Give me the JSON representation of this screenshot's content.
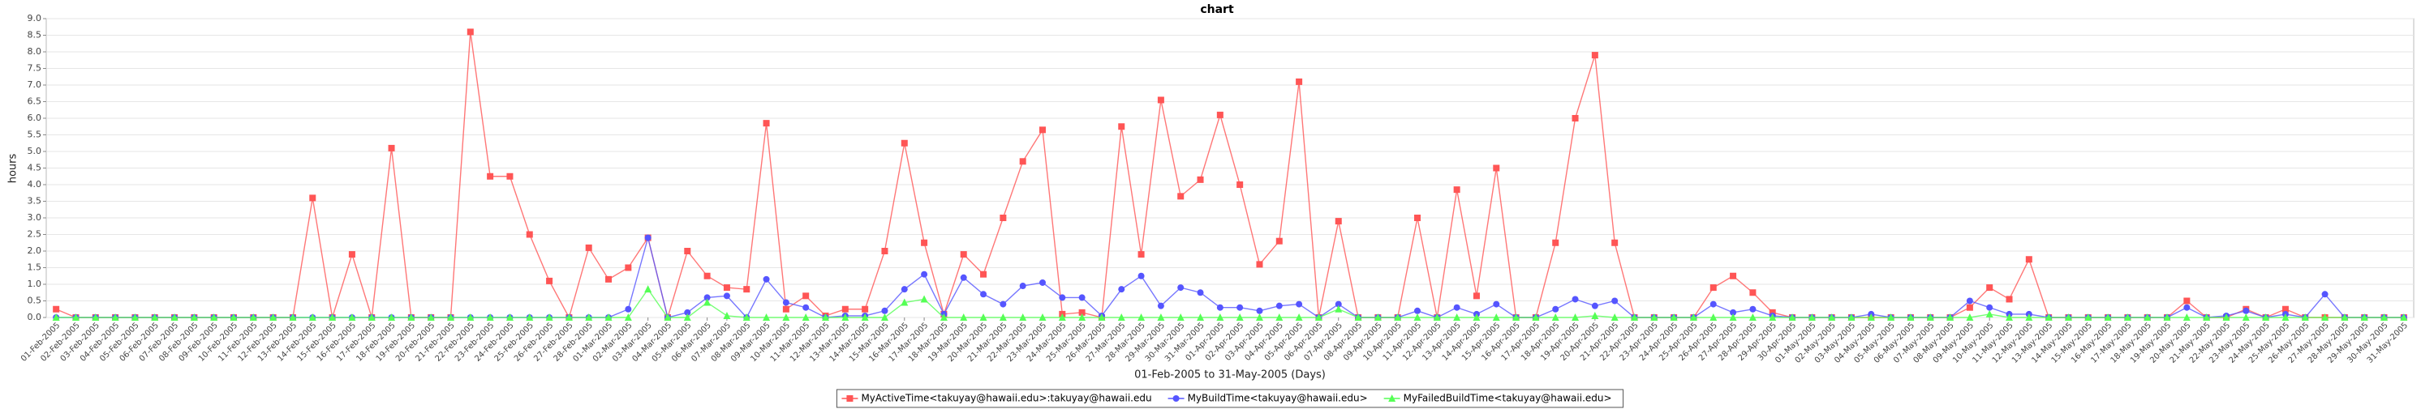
{
  "chart_data": {
    "type": "line",
    "title": "chart",
    "xlabel": "01-Feb-2005 to 31-May-2005 (Days)",
    "ylabel": "hours",
    "categories": [
      "01-Feb-2005",
      "02-Feb-2005",
      "03-Feb-2005",
      "04-Feb-2005",
      "05-Feb-2005",
      "06-Feb-2005",
      "07-Feb-2005",
      "08-Feb-2005",
      "09-Feb-2005",
      "10-Feb-2005",
      "11-Feb-2005",
      "12-Feb-2005",
      "13-Feb-2005",
      "14-Feb-2005",
      "15-Feb-2005",
      "16-Feb-2005",
      "17-Feb-2005",
      "18-Feb-2005",
      "19-Feb-2005",
      "20-Feb-2005",
      "21-Feb-2005",
      "22-Feb-2005",
      "23-Feb-2005",
      "24-Feb-2005",
      "25-Feb-2005",
      "26-Feb-2005",
      "27-Feb-2005",
      "28-Feb-2005",
      "01-Mar-2005",
      "02-Mar-2005",
      "03-Mar-2005",
      "04-Mar-2005",
      "05-Mar-2005",
      "06-Mar-2005",
      "07-Mar-2005",
      "08-Mar-2005",
      "09-Mar-2005",
      "10-Mar-2005",
      "11-Mar-2005",
      "12-Mar-2005",
      "13-Mar-2005",
      "14-Mar-2005",
      "15-Mar-2005",
      "16-Mar-2005",
      "17-Mar-2005",
      "18-Mar-2005",
      "19-Mar-2005",
      "20-Mar-2005",
      "21-Mar-2005",
      "22-Mar-2005",
      "23-Mar-2005",
      "24-Mar-2005",
      "25-Mar-2005",
      "26-Mar-2005",
      "27-Mar-2005",
      "28-Mar-2005",
      "29-Mar-2005",
      "30-Mar-2005",
      "31-Mar-2005",
      "01-Apr-2005",
      "02-Apr-2005",
      "03-Apr-2005",
      "04-Apr-2005",
      "05-Apr-2005",
      "06-Apr-2005",
      "07-Apr-2005",
      "08-Apr-2005",
      "09-Apr-2005",
      "10-Apr-2005",
      "11-Apr-2005",
      "12-Apr-2005",
      "13-Apr-2005",
      "14-Apr-2005",
      "15-Apr-2005",
      "16-Apr-2005",
      "17-Apr-2005",
      "18-Apr-2005",
      "19-Apr-2005",
      "20-Apr-2005",
      "21-Apr-2005",
      "22-Apr-2005",
      "23-Apr-2005",
      "24-Apr-2005",
      "25-Apr-2005",
      "26-Apr-2005",
      "27-Apr-2005",
      "28-Apr-2005",
      "29-Apr-2005",
      "30-Apr-2005",
      "01-May-2005",
      "02-May-2005",
      "03-May-2005",
      "04-May-2005",
      "05-May-2005",
      "06-May-2005",
      "07-May-2005",
      "08-May-2005",
      "09-May-2005",
      "10-May-2005",
      "11-May-2005",
      "12-May-2005",
      "13-May-2005",
      "14-May-2005",
      "15-May-2005",
      "16-May-2005",
      "17-May-2005",
      "18-May-2005",
      "19-May-2005",
      "20-May-2005",
      "21-May-2005",
      "22-May-2005",
      "23-May-2005",
      "24-May-2005",
      "25-May-2005",
      "26-May-2005",
      "27-May-2005",
      "28-May-2005",
      "29-May-2005",
      "30-May-2005",
      "31-May-2005"
    ],
    "series": [
      {
        "name": "MyActiveTime<takuyay@hawaii.edu>:takuyay@hawaii.edu",
        "color": "#ff5555",
        "marker": "square",
        "values": [
          0.25,
          0,
          0,
          0,
          0,
          0,
          0,
          0,
          0,
          0,
          0,
          0,
          0,
          3.6,
          0,
          1.9,
          0,
          5.1,
          0,
          0,
          0,
          8.6,
          4.25,
          4.25,
          2.5,
          1.1,
          0,
          2.1,
          1.15,
          1.5,
          2.4,
          0,
          2.0,
          1.25,
          0.9,
          0.85,
          5.85,
          0.25,
          0.65,
          0.05,
          0.25,
          0.25,
          2.0,
          5.25,
          2.25,
          0.1,
          1.9,
          1.3,
          3.0,
          4.7,
          5.65,
          0.1,
          0.15,
          0,
          5.75,
          1.9,
          6.55,
          3.65,
          4.15,
          6.1,
          4.0,
          1.6,
          2.3,
          7.1,
          0,
          2.9,
          0,
          0,
          0,
          3.0,
          0,
          3.85,
          0.65,
          4.5,
          0,
          0,
          2.25,
          6.0,
          7.9,
          2.25,
          0,
          0,
          0,
          0,
          0.9,
          1.25,
          0.75,
          0.15,
          0,
          0,
          0,
          0,
          0,
          0,
          0,
          0,
          0,
          0.3,
          0.9,
          0.55,
          1.75,
          0,
          0,
          0,
          0,
          0,
          0,
          0,
          0.5,
          0,
          0,
          0.25,
          0,
          0.25,
          0,
          0,
          0,
          0,
          0,
          0
        ]
      },
      {
        "name": "MyBuildTime<takuyay@hawaii.edu>",
        "color": "#5555ff",
        "marker": "circle",
        "values": [
          0,
          0,
          0,
          0,
          0,
          0,
          0,
          0,
          0,
          0,
          0,
          0,
          0,
          0,
          0,
          0,
          0,
          0,
          0,
          0,
          0,
          0,
          0,
          0,
          0,
          0,
          0,
          0,
          0,
          0.25,
          2.4,
          0,
          0.15,
          0.6,
          0.65,
          0,
          1.15,
          0.45,
          0.3,
          0,
          0.05,
          0.05,
          0.2,
          0.85,
          1.3,
          0.1,
          1.2,
          0.7,
          0.4,
          0.95,
          1.05,
          0.6,
          0.6,
          0.05,
          0.85,
          1.25,
          0.35,
          0.9,
          0.75,
          0.3,
          0.3,
          0.2,
          0.35,
          0.4,
          0,
          0.4,
          0,
          0,
          0,
          0.2,
          0,
          0.3,
          0.1,
          0.4,
          0,
          0,
          0.25,
          0.55,
          0.35,
          0.5,
          0,
          0,
          0,
          0,
          0.4,
          0.15,
          0.25,
          0.05,
          0,
          0,
          0,
          0,
          0.1,
          0,
          0,
          0,
          0,
          0.5,
          0.3,
          0.1,
          0.1,
          0,
          0,
          0,
          0,
          0,
          0,
          0,
          0.3,
          0,
          0.05,
          0.2,
          0,
          0.1,
          0,
          0.7,
          0,
          0,
          0,
          0
        ]
      },
      {
        "name": "MyFailedBuildTime<takuyay@hawaii.edu>",
        "color": "#55ff55",
        "marker": "triangle",
        "values": [
          0,
          0,
          0,
          0,
          0,
          0,
          0,
          0,
          0,
          0,
          0,
          0,
          0,
          0,
          0,
          0,
          0,
          0,
          0,
          0,
          0,
          0,
          0,
          0,
          0,
          0,
          0,
          0,
          0,
          0,
          0.85,
          0,
          0,
          0.45,
          0.05,
          0,
          0,
          0,
          0,
          0,
          0,
          0,
          0,
          0.45,
          0.55,
          0,
          0,
          0,
          0,
          0,
          0,
          0,
          0,
          0,
          0,
          0,
          0,
          0,
          0,
          0,
          0,
          0,
          0,
          0,
          0,
          0.25,
          0,
          0,
          0,
          0,
          0,
          0,
          0,
          0,
          0,
          0,
          0,
          0,
          0.05,
          0,
          0,
          0,
          0,
          0,
          0,
          0,
          0,
          0,
          0,
          0,
          0,
          0,
          0,
          0,
          0,
          0,
          0,
          0,
          0.1,
          0,
          0,
          0,
          0,
          0,
          0,
          0,
          0,
          0,
          0,
          0,
          0,
          0,
          0,
          0,
          0,
          0,
          0,
          0,
          0,
          0
        ]
      }
    ],
    "ylim": [
      0,
      9
    ],
    "yticks": [
      {
        "value": 0,
        "label": "0.0"
      },
      0.5,
      {
        "value": 1,
        "label": "1.0"
      },
      1.5,
      {
        "value": 2,
        "label": "2.0"
      },
      2.5,
      {
        "value": 3,
        "label": "3.0"
      },
      3.5,
      {
        "value": 4,
        "label": "4.0"
      },
      4.5,
      {
        "value": 5,
        "label": "5.0"
      },
      5.5,
      {
        "value": 6,
        "label": "6.0"
      },
      6.5,
      {
        "value": 7,
        "label": "7.0"
      },
      7.5,
      {
        "value": 8,
        "label": "8.0"
      },
      8.5,
      {
        "value": 9,
        "label": "9.0"
      }
    ],
    "grid": true,
    "legend": "bottom"
  }
}
